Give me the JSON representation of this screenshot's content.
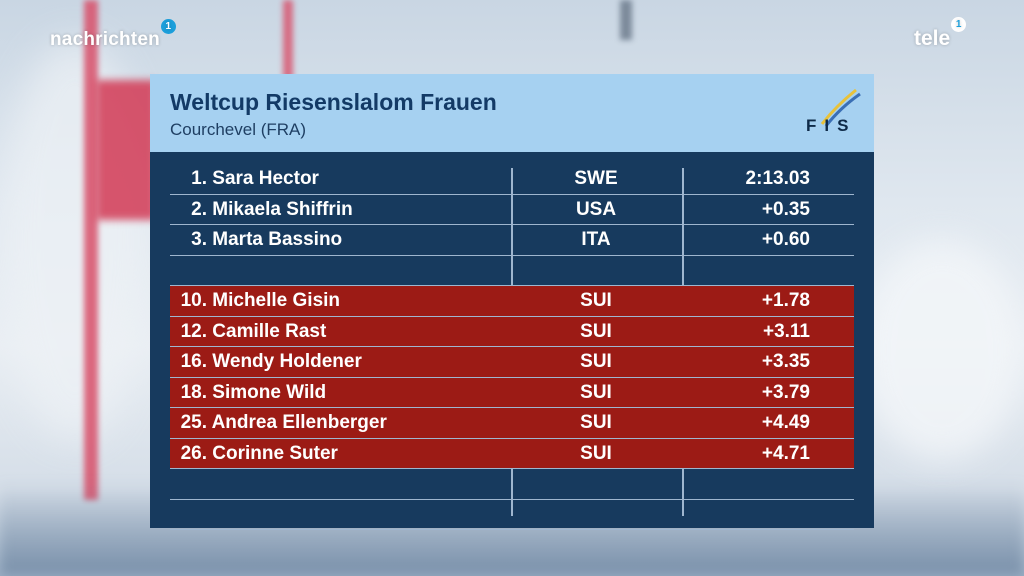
{
  "broadcaster_left": {
    "name": "nachrichten",
    "badge": "1"
  },
  "broadcaster_right": {
    "name": "tele",
    "badge": "1"
  },
  "header": {
    "title": "Weltcup Riesenslalom Frauen",
    "subtitle": "Courchevel (FRA)",
    "logo_text": "FIS"
  },
  "colors": {
    "header_bg": "#a6d1f1",
    "panel_bg": "#173a5e",
    "highlight_row": "#9c1b15",
    "title": "#133a66"
  },
  "results": [
    {
      "rank": "1.",
      "name": "Sara Hector",
      "nation": "SWE",
      "time": "2:13.03",
      "highlight": false
    },
    {
      "rank": "2.",
      "name": "Mikaela Shiffrin",
      "nation": "USA",
      "time": "+0.35",
      "highlight": false
    },
    {
      "rank": "3.",
      "name": "Marta Bassino",
      "nation": "ITA",
      "time": "+0.60",
      "highlight": false
    },
    {
      "rank": "",
      "name": "",
      "nation": "",
      "time": "",
      "highlight": false
    },
    {
      "rank": "10.",
      "name": "Michelle Gisin",
      "nation": "SUI",
      "time": "+1.78",
      "highlight": true
    },
    {
      "rank": "12.",
      "name": "Camille Rast",
      "nation": "SUI",
      "time": "+3.11",
      "highlight": true
    },
    {
      "rank": "16.",
      "name": "Wendy Holdener",
      "nation": "SUI",
      "time": "+3.35",
      "highlight": true
    },
    {
      "rank": "18.",
      "name": "Simone Wild",
      "nation": "SUI",
      "time": "+3.79",
      "highlight": true
    },
    {
      "rank": "25.",
      "name": "Andrea Ellenberger",
      "nation": "SUI",
      "time": "+4.49",
      "highlight": true
    },
    {
      "rank": "26.",
      "name": "Corinne Suter",
      "nation": "SUI",
      "time": "+4.71",
      "highlight": true
    },
    {
      "rank": "",
      "name": "",
      "nation": "",
      "time": "",
      "highlight": false
    },
    {
      "rank": "",
      "name": "",
      "nation": "",
      "time": "",
      "highlight": false
    }
  ]
}
